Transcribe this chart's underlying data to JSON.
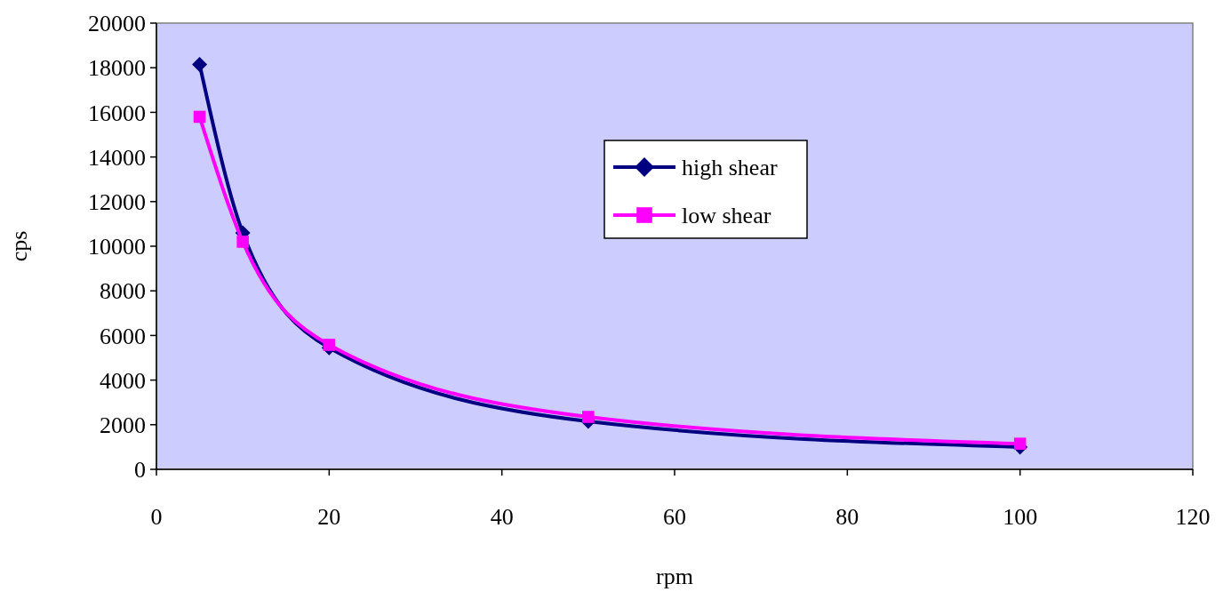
{
  "chart_data": {
    "type": "line",
    "xlabel": "rpm",
    "ylabel": "cps",
    "x": [
      5,
      10,
      20,
      50,
      100
    ],
    "series": [
      {
        "name": "high shear",
        "color": "#000080",
        "marker": "diamond",
        "values": [
          18150,
          10600,
          5450,
          2150,
          1000
        ]
      },
      {
        "name": "low shear",
        "color": "#ff00ff",
        "marker": "square",
        "values": [
          15800,
          10200,
          5580,
          2350,
          1150
        ]
      }
    ],
    "xlim": [
      0,
      120
    ],
    "xticks": [
      0,
      20,
      40,
      60,
      80,
      100,
      120
    ],
    "ylim": [
      0,
      20000
    ],
    "yticks": [
      0,
      2000,
      4000,
      6000,
      8000,
      10000,
      12000,
      14000,
      16000,
      18000,
      20000
    ],
    "grid": false,
    "legend": "right",
    "line_style": "solid"
  }
}
